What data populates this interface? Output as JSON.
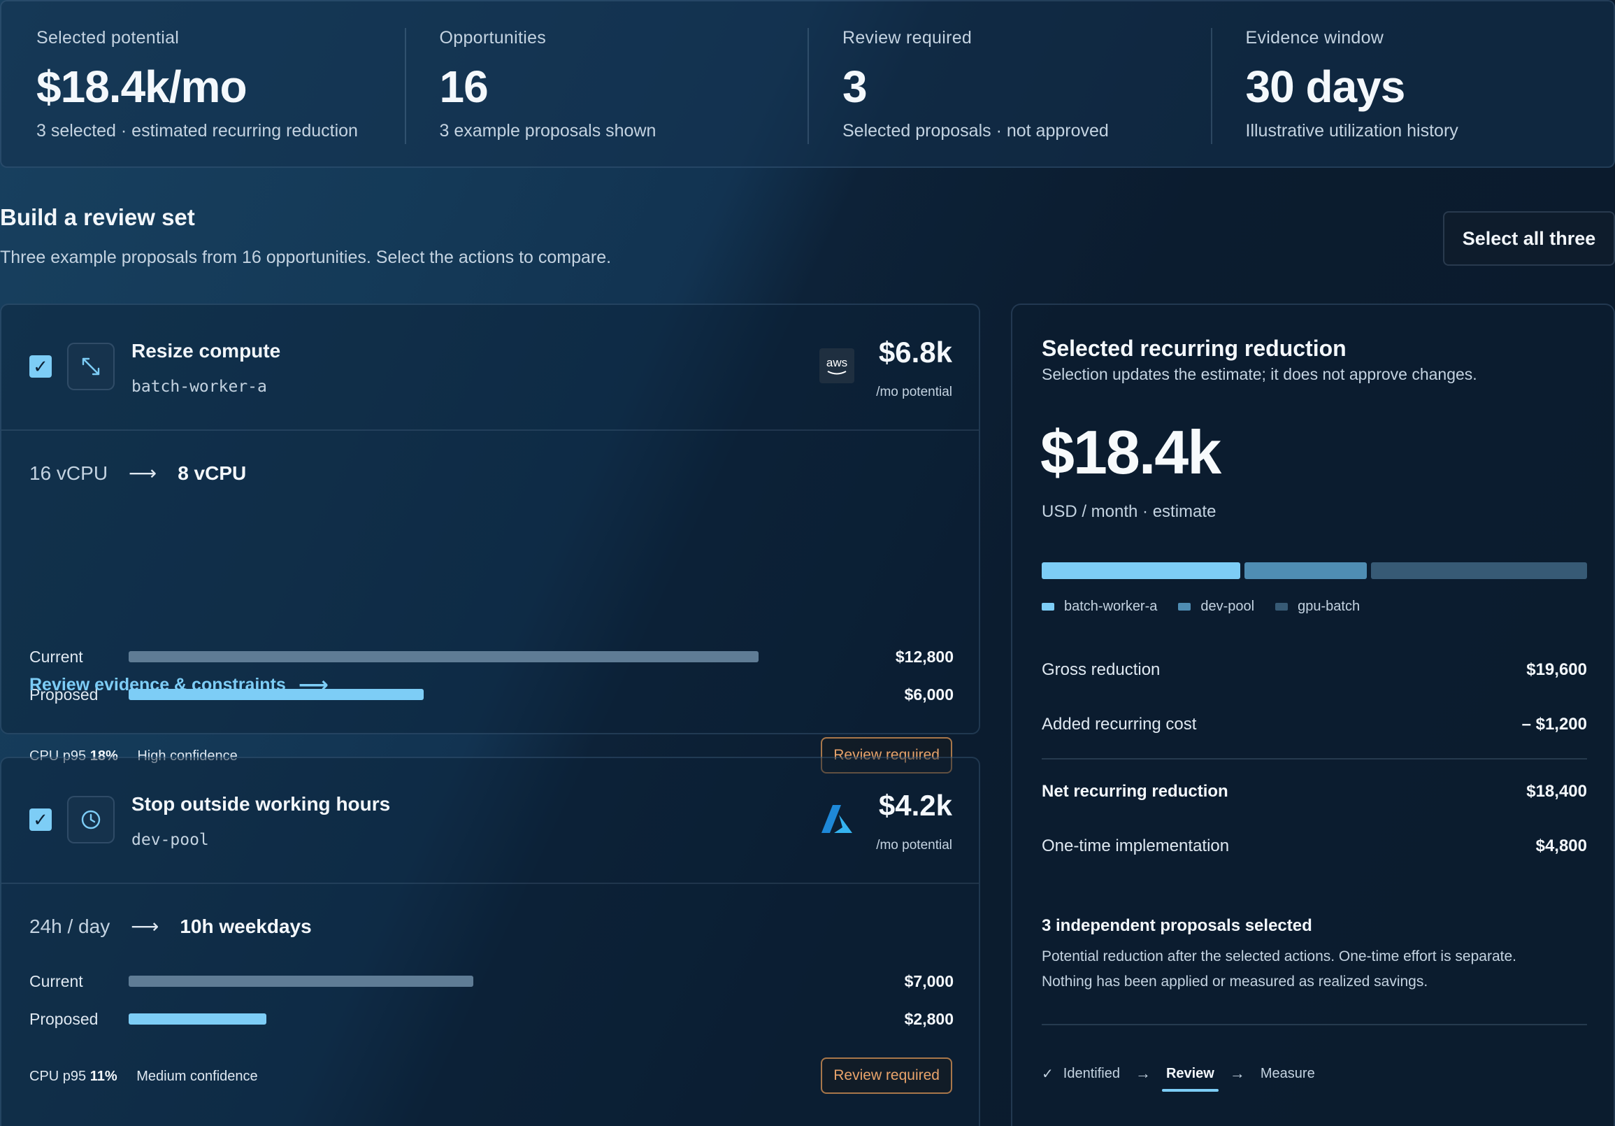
{
  "stats": [
    {
      "label": "Selected potential",
      "value": "$18.4k/mo",
      "sub": "3 selected · estimated recurring reduction"
    },
    {
      "label": "Opportunities",
      "value": "16",
      "sub": "3 example proposals shown"
    },
    {
      "label": "Review required",
      "value": "3",
      "sub": "Selected proposals · not approved"
    },
    {
      "label": "Evidence window",
      "value": "30 days",
      "sub": "Illustrative utilization history"
    }
  ],
  "section": {
    "title": "Build a review set",
    "subtitle": "Three example proposals from 16 opportunities. Select the actions to compare.",
    "select_all_label": "Select all three"
  },
  "proposals": [
    {
      "checked": "✓",
      "icon": "resize-arrows-icon",
      "title": "Resize compute",
      "resource": "batch-worker-a",
      "provider": "aws",
      "provider_label": "aws",
      "potential": "$6.8k",
      "potential_sub": "/mo potential",
      "from": "16 vCPU",
      "to": "8 vCPU",
      "current_label": "Current",
      "current_value": "$12,800",
      "current_amount": 12800,
      "proposed_label": "Proposed",
      "proposed_value": "$6,000",
      "proposed_amount": 6000,
      "metric_label": "CPU p95",
      "metric_value": "18%",
      "confidence": "High confidence",
      "badge": "Review required",
      "link": "Review evidence & constraints"
    },
    {
      "checked": "✓",
      "icon": "clock-icon",
      "title": "Stop outside working hours",
      "resource": "dev-pool",
      "provider": "azure",
      "potential": "$4.2k",
      "potential_sub": "/mo potential",
      "from": "24h / day",
      "to": "10h weekdays",
      "current_label": "Current",
      "current_value": "$7,000",
      "current_amount": 7000,
      "proposed_label": "Proposed",
      "proposed_value": "$2,800",
      "proposed_amount": 2800,
      "metric_label": "CPU p95",
      "metric_value": "11%",
      "confidence": "Medium confidence",
      "badge": "Review required"
    }
  ],
  "summary": {
    "title": "Selected recurring reduction",
    "subtitle": "Selection updates the estimate; it does not approve changes.",
    "total": "$18.4k",
    "unit": "USD / month · estimate",
    "breakdown": [
      {
        "name": "batch-worker-a",
        "value": 6800,
        "color": "#7dcdf6"
      },
      {
        "name": "dev-pool",
        "value": 4200,
        "color": "#4f8db3"
      },
      {
        "name": "gpu-batch",
        "value": 7400,
        "color": "#375a75"
      }
    ],
    "rows": {
      "gross_label": "Gross reduction",
      "gross_value": "$19,600",
      "added_label": "Added recurring cost",
      "added_value": "– $1,200",
      "net_label": "Net recurring reduction",
      "net_value": "$18,400",
      "onetime_label": "One-time implementation",
      "onetime_value": "$4,800"
    },
    "note_title": "3 independent proposals selected",
    "note_line1": "Potential reduction after the selected actions. One-time effort is separate.",
    "note_line2": "Nothing has been applied or measured as realized savings.",
    "steps": [
      {
        "label": "Identified",
        "state": "done"
      },
      {
        "label": "Review",
        "state": "active"
      },
      {
        "label": "Measure",
        "state": "pending"
      }
    ]
  },
  "colors": {
    "accent": "#7dcdf6",
    "current_bar": "#5f7c95",
    "warning": "#e9a46b"
  }
}
